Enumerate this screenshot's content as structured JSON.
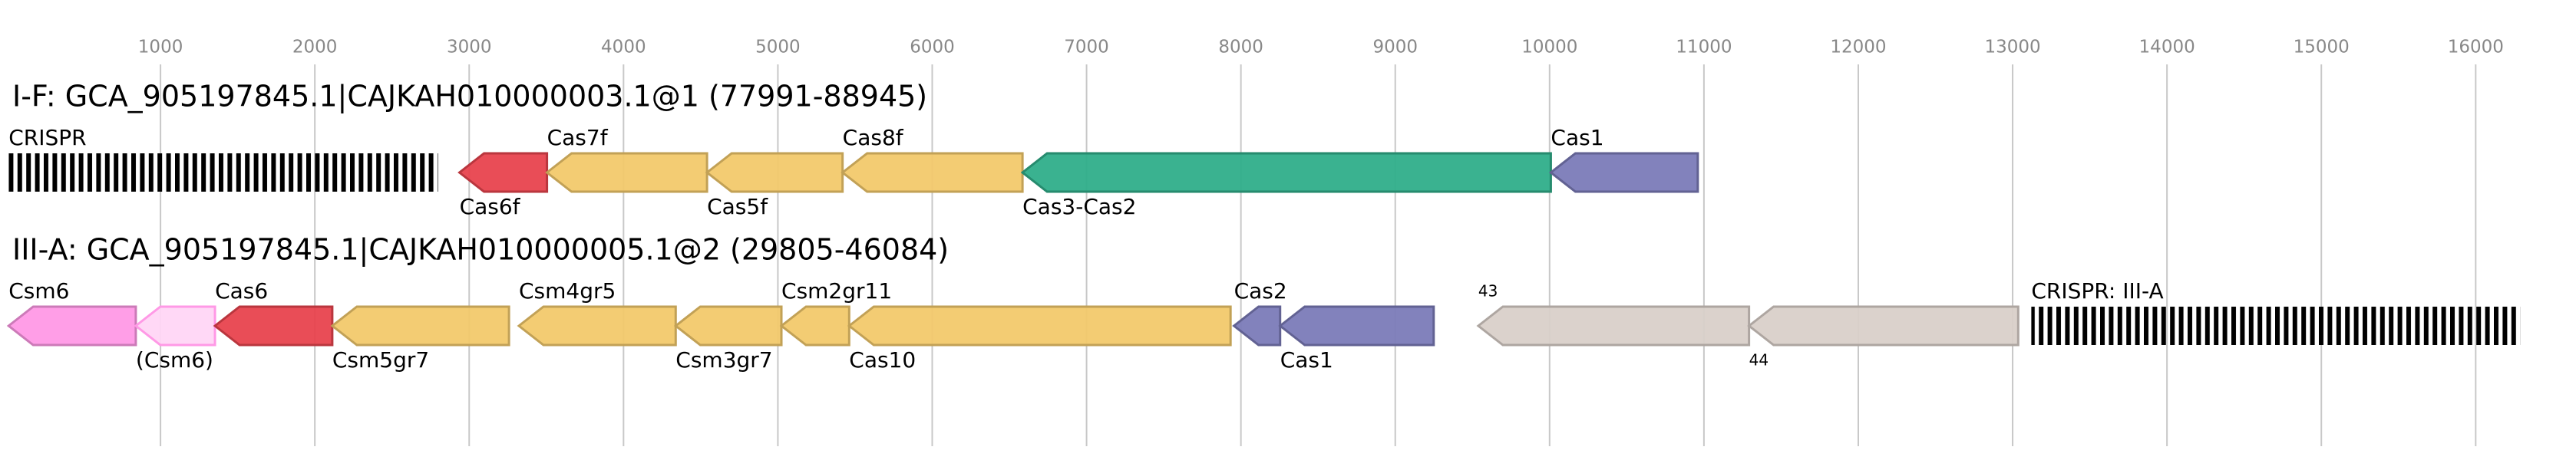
{
  "chart_data": {
    "type": "gene-map",
    "xlim": [
      0,
      16650
    ],
    "xticks": [
      1000,
      2000,
      3000,
      4000,
      5000,
      6000,
      7000,
      8000,
      9000,
      10000,
      11000,
      12000,
      13000,
      14000,
      15000,
      16000
    ],
    "grid": true,
    "tracks": [
      {
        "title": "I-F: GCA_905197845.1|CAJKAH010000003.1@1 (77991-88945)",
        "genes": [
          {
            "label": "CRISPR",
            "start": 16,
            "end": 2798,
            "pattern": "stripes",
            "color": "#000000"
          },
          {
            "label": "Cas6f",
            "start": 2937,
            "end": 3504,
            "strand": "-",
            "color": "#e8434e"
          },
          {
            "label": "Cas7f",
            "start": 3504,
            "end": 4541,
            "strand": "-",
            "color": "#f2c96b"
          },
          {
            "label": "Cas5f",
            "start": 4541,
            "end": 5419,
            "strand": "-",
            "color": "#f2c96b"
          },
          {
            "label": "Cas8f",
            "start": 5419,
            "end": 6585,
            "strand": "-",
            "color": "#f2c96b"
          },
          {
            "label": "Cas3-Cas2",
            "start": 6585,
            "end": 10008,
            "strand": "-",
            "color": "#2fae8a"
          },
          {
            "label": "Cas1",
            "start": 10008,
            "end": 10960,
            "strand": "-",
            "color": "#7b7bb8"
          }
        ]
      },
      {
        "title": "III-A: GCA_905197845.1|CAJKAH010000005.1@2 (29805-46084)",
        "genes": [
          {
            "label": "Csm6",
            "start": 16,
            "end": 840,
            "strand": "-",
            "color": "#ff99e6"
          },
          {
            "label": "(Csm6)",
            "start": 840,
            "end": 1353,
            "strand": "-",
            "color": "#ffd6f5"
          },
          {
            "label": "Cas6",
            "start": 1353,
            "end": 2113,
            "strand": "-",
            "color": "#e8434e"
          },
          {
            "label": "Csm5gr7",
            "start": 2113,
            "end": 3258,
            "strand": "-",
            "color": "#f2c96b"
          },
          {
            "label": "Csm4gr5",
            "start": 3322,
            "end": 4338,
            "strand": "-",
            "color": "#f2c96b"
          },
          {
            "label": "Csm3gr7",
            "start": 4338,
            "end": 5023,
            "strand": "-",
            "color": "#f2c96b"
          },
          {
            "label": "Csm2gr11",
            "start": 5023,
            "end": 5462,
            "strand": "-",
            "color": "#f2c96b"
          },
          {
            "label": "Cas10",
            "start": 5462,
            "end": 7933,
            "strand": "-",
            "color": "#f2c96b"
          },
          {
            "label": "Cas2",
            "start": 7955,
            "end": 8254,
            "strand": "-",
            "color": "#7b7bb8"
          },
          {
            "label": "Cas1",
            "start": 8254,
            "end": 9249,
            "strand": "-",
            "color": "#7b7bb8"
          },
          {
            "label": "43",
            "start": 9538,
            "end": 11292,
            "strand": "-",
            "color": "#d9d0c9",
            "small": true
          },
          {
            "label": "44",
            "start": 11292,
            "end": 13036,
            "strand": "-",
            "color": "#d9d0c9",
            "small": true
          },
          {
            "label": "CRISPR: III-A",
            "start": 13121,
            "end": 16288,
            "pattern": "stripes",
            "color": "#000000"
          }
        ]
      }
    ]
  }
}
